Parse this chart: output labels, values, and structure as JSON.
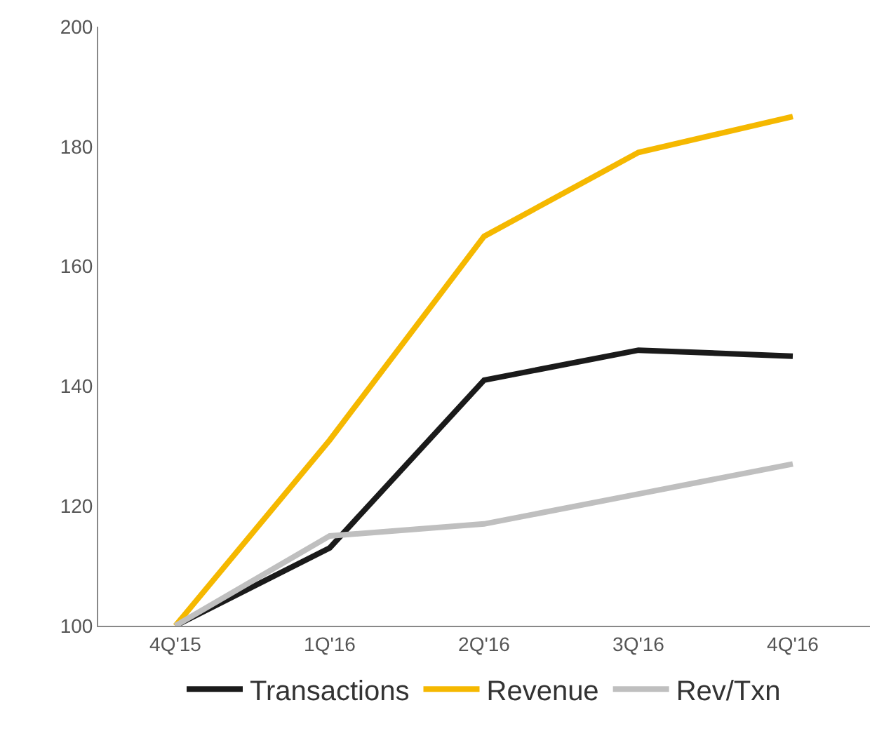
{
  "chart_data": {
    "type": "line",
    "categories": [
      "4Q'15",
      "1Q'16",
      "2Q'16",
      "3Q'16",
      "4Q'16"
    ],
    "series": [
      {
        "name": "Transactions",
        "color": "#1a1a1a",
        "values": [
          100,
          113,
          141,
          146,
          145
        ]
      },
      {
        "name": "Revenue",
        "color": "#f5b800",
        "values": [
          100,
          131,
          165,
          179,
          185
        ]
      },
      {
        "name": "Rev/Txn",
        "color": "#bfbfbf",
        "values": [
          100,
          115,
          117,
          122,
          127
        ]
      }
    ],
    "ylim": [
      100,
      200
    ],
    "yticks": [
      100,
      120,
      140,
      160,
      180,
      200
    ],
    "grid": false,
    "legend": "bottom",
    "marker": "none",
    "line_style": "solid"
  }
}
